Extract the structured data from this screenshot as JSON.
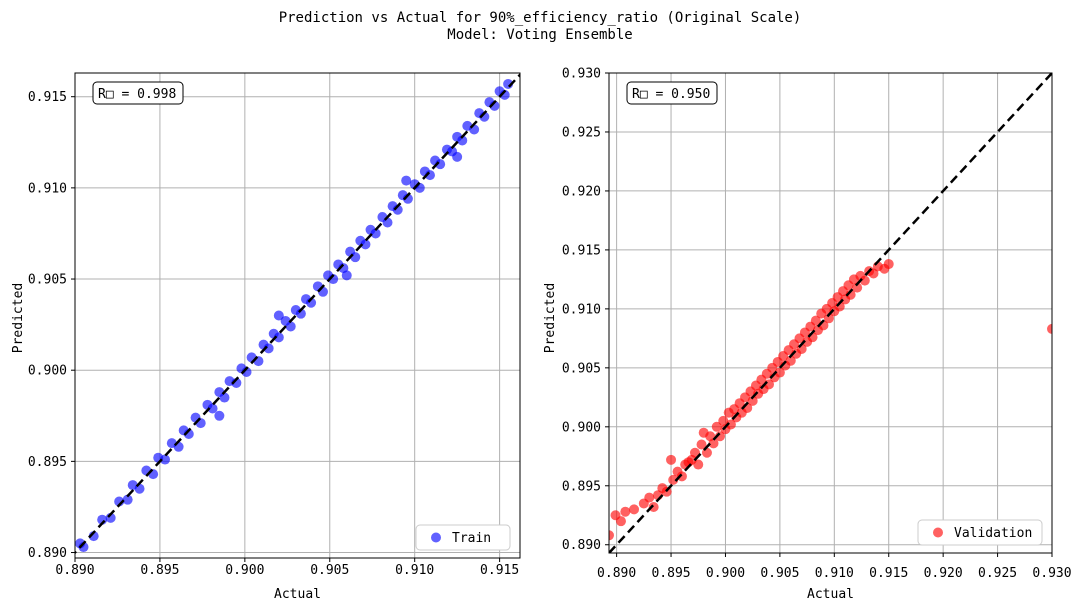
{
  "figure": {
    "title_line1": "Prediction vs Actual for 90%_efficiency_ratio (Original Scale)",
    "title_line2": "Model: Voting Ensemble"
  },
  "chart_data": [
    {
      "type": "scatter",
      "xlabel": "Actual",
      "ylabel": "Predicted",
      "xlim": [
        0.89,
        0.9162
      ],
      "ylim": [
        0.8897,
        0.9163
      ],
      "xticks": [
        "0.890",
        "0.895",
        "0.900",
        "0.905",
        "0.910",
        "0.915"
      ],
      "yticks": [
        "0.890",
        "0.895",
        "0.900",
        "0.905",
        "0.910",
        "0.915"
      ],
      "annotation": "R□ = 0.998",
      "grid": true,
      "legend_position": "bottom-right",
      "reference_line": "y = x (black dashed)",
      "series": [
        {
          "name": "Train",
          "color": "#0000ff",
          "trend": "tight linear cluster along y = x from about 0.890 to 0.9157",
          "points": [
            [
              0.8903,
              0.8905
            ],
            [
              0.8905,
              0.8903
            ],
            [
              0.8911,
              0.8909
            ],
            [
              0.8916,
              0.8918
            ],
            [
              0.8921,
              0.8919
            ],
            [
              0.8926,
              0.8928
            ],
            [
              0.8931,
              0.8929
            ],
            [
              0.8934,
              0.8937
            ],
            [
              0.8938,
              0.8935
            ],
            [
              0.8942,
              0.8945
            ],
            [
              0.8946,
              0.8943
            ],
            [
              0.8949,
              0.8952
            ],
            [
              0.8953,
              0.8951
            ],
            [
              0.8957,
              0.896
            ],
            [
              0.8961,
              0.8958
            ],
            [
              0.8964,
              0.8967
            ],
            [
              0.8967,
              0.8965
            ],
            [
              0.8971,
              0.8974
            ],
            [
              0.8974,
              0.8971
            ],
            [
              0.8978,
              0.8981
            ],
            [
              0.8981,
              0.8979
            ],
            [
              0.8985,
              0.8988
            ],
            [
              0.8988,
              0.8985
            ],
            [
              0.8991,
              0.8994
            ],
            [
              0.8995,
              0.8993
            ],
            [
              0.8998,
              0.9001
            ],
            [
              0.9001,
              0.8999
            ],
            [
              0.9004,
              0.9007
            ],
            [
              0.9008,
              0.9005
            ],
            [
              0.9011,
              0.9014
            ],
            [
              0.9014,
              0.9012
            ],
            [
              0.9017,
              0.902
            ],
            [
              0.902,
              0.9018
            ],
            [
              0.9024,
              0.9027
            ],
            [
              0.9027,
              0.9024
            ],
            [
              0.903,
              0.9033
            ],
            [
              0.9033,
              0.9031
            ],
            [
              0.9036,
              0.9039
            ],
            [
              0.9039,
              0.9037
            ],
            [
              0.9043,
              0.9046
            ],
            [
              0.9046,
              0.9043
            ],
            [
              0.9049,
              0.9052
            ],
            [
              0.9052,
              0.905
            ],
            [
              0.9055,
              0.9058
            ],
            [
              0.9058,
              0.9056
            ],
            [
              0.9062,
              0.9065
            ],
            [
              0.9065,
              0.9062
            ],
            [
              0.9068,
              0.9071
            ],
            [
              0.9071,
              0.9069
            ],
            [
              0.9074,
              0.9077
            ],
            [
              0.9077,
              0.9075
            ],
            [
              0.9081,
              0.9084
            ],
            [
              0.9084,
              0.9081
            ],
            [
              0.9087,
              0.909
            ],
            [
              0.909,
              0.9088
            ],
            [
              0.9093,
              0.9096
            ],
            [
              0.9096,
              0.9094
            ],
            [
              0.91,
              0.9102
            ],
            [
              0.9103,
              0.91
            ],
            [
              0.9106,
              0.9109
            ],
            [
              0.9109,
              0.9107
            ],
            [
              0.9112,
              0.9115
            ],
            [
              0.9115,
              0.9113
            ],
            [
              0.9119,
              0.9121
            ],
            [
              0.9122,
              0.912
            ],
            [
              0.9125,
              0.9128
            ],
            [
              0.9128,
              0.9126
            ],
            [
              0.9131,
              0.9134
            ],
            [
              0.9135,
              0.9132
            ],
            [
              0.9138,
              0.9141
            ],
            [
              0.9141,
              0.9139
            ],
            [
              0.9144,
              0.9147
            ],
            [
              0.9147,
              0.9145
            ],
            [
              0.915,
              0.9153
            ],
            [
              0.9153,
              0.9151
            ],
            [
              0.9155,
              0.9157
            ],
            [
              0.8985,
              0.8975
            ],
            [
              0.902,
              0.903
            ],
            [
              0.906,
              0.9052
            ],
            [
              0.9095,
              0.9104
            ],
            [
              0.9125,
              0.9117
            ]
          ]
        }
      ]
    },
    {
      "type": "scatter",
      "xlabel": "Actual",
      "ylabel": "Predicted",
      "xlim": [
        0.8893,
        0.93
      ],
      "ylim": [
        0.8893,
        0.93
      ],
      "xticks": [
        "0.890",
        "0.895",
        "0.900",
        "0.905",
        "0.910",
        "0.915",
        "0.920",
        "0.925",
        "0.930"
      ],
      "yticks": [
        "0.890",
        "0.895",
        "0.900",
        "0.905",
        "0.910",
        "0.915",
        "0.920",
        "0.925",
        "0.930"
      ],
      "annotation": "R□ = 0.950",
      "grid": true,
      "legend_position": "bottom-right",
      "reference_line": "y = x (black dashed)",
      "series": [
        {
          "name": "Validation",
          "color": "#ff0000",
          "trend": "linear cluster along y = x from about 0.890 to 0.915, wider spread than training, one outlier near (0.930, 0.908)",
          "points": [
            [
              0.8893,
              0.8908
            ],
            [
              0.8899,
              0.8925
            ],
            [
              0.8904,
              0.892
            ],
            [
              0.8908,
              0.8928
            ],
            [
              0.8916,
              0.893
            ],
            [
              0.8925,
              0.8935
            ],
            [
              0.893,
              0.894
            ],
            [
              0.8934,
              0.8932
            ],
            [
              0.8938,
              0.8942
            ],
            [
              0.8942,
              0.8948
            ],
            [
              0.8946,
              0.8945
            ],
            [
              0.895,
              0.8972
            ],
            [
              0.8952,
              0.8955
            ],
            [
              0.8956,
              0.8962
            ],
            [
              0.896,
              0.8958
            ],
            [
              0.8963,
              0.8968
            ],
            [
              0.8966,
              0.897
            ],
            [
              0.8969,
              0.8972
            ],
            [
              0.8972,
              0.8978
            ],
            [
              0.8975,
              0.8968
            ],
            [
              0.8978,
              0.8985
            ],
            [
              0.898,
              0.8995
            ],
            [
              0.8983,
              0.8978
            ],
            [
              0.8986,
              0.8992
            ],
            [
              0.8989,
              0.8986
            ],
            [
              0.8992,
              0.9
            ],
            [
              0.8995,
              0.8992
            ],
            [
              0.8998,
              0.9005
            ],
            [
              0.9,
              0.8998
            ],
            [
              0.9003,
              0.9012
            ],
            [
              0.9005,
              0.9002
            ],
            [
              0.9008,
              0.9015
            ],
            [
              0.901,
              0.9008
            ],
            [
              0.9013,
              0.902
            ],
            [
              0.9015,
              0.9012
            ],
            [
              0.9018,
              0.9025
            ],
            [
              0.902,
              0.9016
            ],
            [
              0.9023,
              0.903
            ],
            [
              0.9025,
              0.9022
            ],
            [
              0.9028,
              0.9035
            ],
            [
              0.903,
              0.9028
            ],
            [
              0.9033,
              0.904
            ],
            [
              0.9035,
              0.9032
            ],
            [
              0.9038,
              0.9045
            ],
            [
              0.904,
              0.9036
            ],
            [
              0.9043,
              0.905
            ],
            [
              0.9045,
              0.9042
            ],
            [
              0.9048,
              0.9055
            ],
            [
              0.905,
              0.9046
            ],
            [
              0.9053,
              0.906
            ],
            [
              0.9055,
              0.9052
            ],
            [
              0.9058,
              0.9065
            ],
            [
              0.906,
              0.9056
            ],
            [
              0.9063,
              0.907
            ],
            [
              0.9065,
              0.9062
            ],
            [
              0.9068,
              0.9075
            ],
            [
              0.907,
              0.9066
            ],
            [
              0.9073,
              0.908
            ],
            [
              0.9075,
              0.9072
            ],
            [
              0.9078,
              0.9085
            ],
            [
              0.908,
              0.9076
            ],
            [
              0.9083,
              0.909
            ],
            [
              0.9085,
              0.9082
            ],
            [
              0.9088,
              0.9096
            ],
            [
              0.909,
              0.9086
            ],
            [
              0.9093,
              0.91
            ],
            [
              0.9095,
              0.9092
            ],
            [
              0.9098,
              0.9105
            ],
            [
              0.91,
              0.9098
            ],
            [
              0.9103,
              0.911
            ],
            [
              0.9105,
              0.9102
            ],
            [
              0.9108,
              0.9115
            ],
            [
              0.911,
              0.9108
            ],
            [
              0.9113,
              0.912
            ],
            [
              0.9115,
              0.9112
            ],
            [
              0.9118,
              0.9125
            ],
            [
              0.9121,
              0.9118
            ],
            [
              0.9124,
              0.9128
            ],
            [
              0.9128,
              0.9124
            ],
            [
              0.9132,
              0.9132
            ],
            [
              0.9136,
              0.913
            ],
            [
              0.914,
              0.9136
            ],
            [
              0.9146,
              0.9134
            ],
            [
              0.915,
              0.9138
            ],
            [
              0.93,
              0.9083
            ]
          ]
        }
      ]
    }
  ]
}
